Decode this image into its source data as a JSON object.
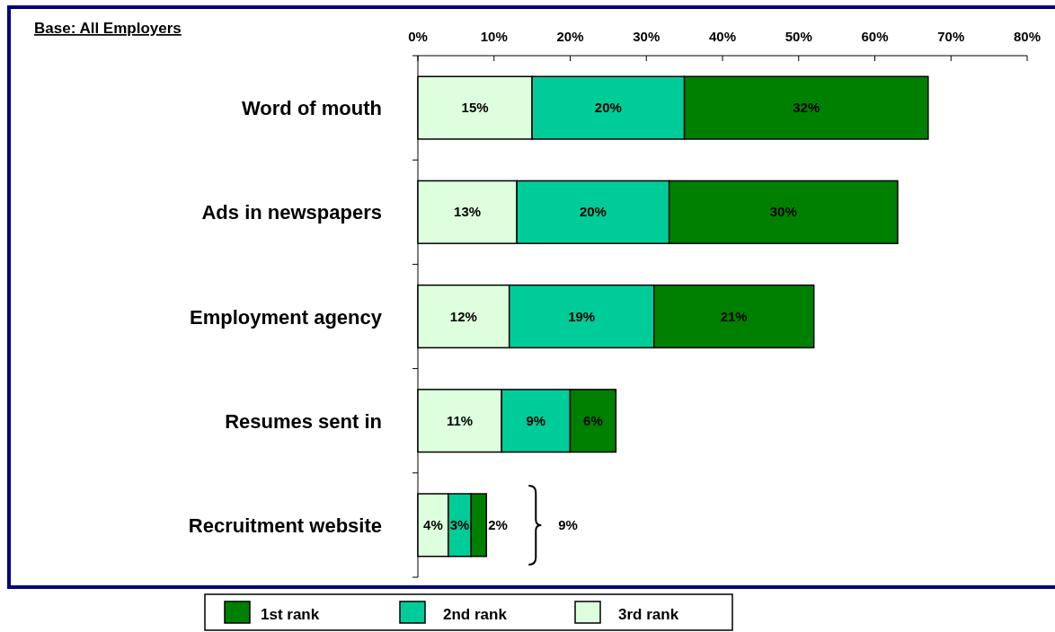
{
  "chart_data": {
    "type": "bar",
    "orientation": "horizontal",
    "stacked": true,
    "title": "Base: All Employers",
    "categories": [
      "Word of mouth",
      "Ads in newspapers",
      "Employment agency",
      "Resumes sent in",
      "Recruitment website"
    ],
    "series": [
      {
        "name": "3rd rank",
        "color": "#ddffdd",
        "values": [
          15,
          13,
          12,
          11,
          4
        ],
        "value_labels": [
          "15%",
          "13%",
          "12%",
          "11%",
          "4%"
        ]
      },
      {
        "name": "2nd rank",
        "color": "#00cc99",
        "values": [
          20,
          20,
          19,
          9,
          3
        ],
        "value_labels": [
          "20%",
          "20%",
          "19%",
          "9%",
          "3%"
        ]
      },
      {
        "name": "1st rank",
        "color": "#008000",
        "values": [
          32,
          30,
          21,
          6,
          2
        ],
        "value_labels": [
          "32%",
          "30%",
          "21%",
          "6%",
          "2%"
        ]
      }
    ],
    "xlim": [
      0,
      80
    ],
    "xticks": [
      {
        "value": 0,
        "label": "0%"
      },
      {
        "value": 10,
        "label": "10%"
      },
      {
        "value": 20,
        "label": "20%"
      },
      {
        "value": 30,
        "label": "30%"
      },
      {
        "value": 40,
        "label": "40%"
      },
      {
        "value": 50,
        "label": "50%"
      },
      {
        "value": 60,
        "label": "60%"
      },
      {
        "value": 70,
        "label": "70%"
      },
      {
        "value": 80,
        "label": "80%"
      }
    ],
    "legend": "bottom",
    "grid": false,
    "annotations": [
      "9%"
    ]
  }
}
